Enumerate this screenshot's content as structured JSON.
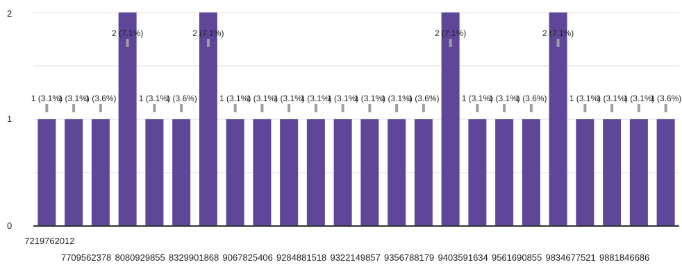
{
  "chart_data": {
    "type": "bar",
    "categories": [
      "7219762012",
      "7709562378",
      "",
      "8080929855",
      "",
      "8329901868",
      "",
      "9067825406",
      "",
      "9284881518",
      "",
      "9322149857",
      "",
      "9356788179",
      "",
      "9403591634",
      "",
      "9561690855",
      "",
      "9834677521",
      "",
      "9881846686",
      "",
      ""
    ],
    "values": [
      1,
      1,
      1,
      2,
      1,
      1,
      2,
      1,
      1,
      1,
      1,
      1,
      1,
      1,
      1,
      2,
      1,
      1,
      1,
      2,
      1,
      1,
      1,
      1
    ],
    "data_labels": [
      "1 (3.1%)",
      "1 (3.1%)",
      "1 (3.6%)",
      "2 (7.1%)",
      "1 (3.1%)",
      "1 (3.6%)",
      "2 (7.1%)",
      "1 (3.1%)",
      "1 (3.1%)",
      "1 (3.1%)",
      "1 (3.1%)",
      "1 (3.1%)",
      "1 (3.1%)",
      "1 (3.1%)",
      "1 (3.6%)",
      "2 (7.1%)",
      "1 (3.1%)",
      "1 (3.1%)",
      "1 (3.6%)",
      "2 (7.1%)",
      "1 (3.1%)",
      "1 (3.1%)",
      "1 (3.1%)",
      "1 (3.6%)"
    ],
    "ylim": [
      0,
      2
    ],
    "yticks": [
      0,
      1,
      2
    ],
    "grid": true,
    "bar_color": "#5e4699",
    "label_box_color": "#9e9e9e"
  }
}
